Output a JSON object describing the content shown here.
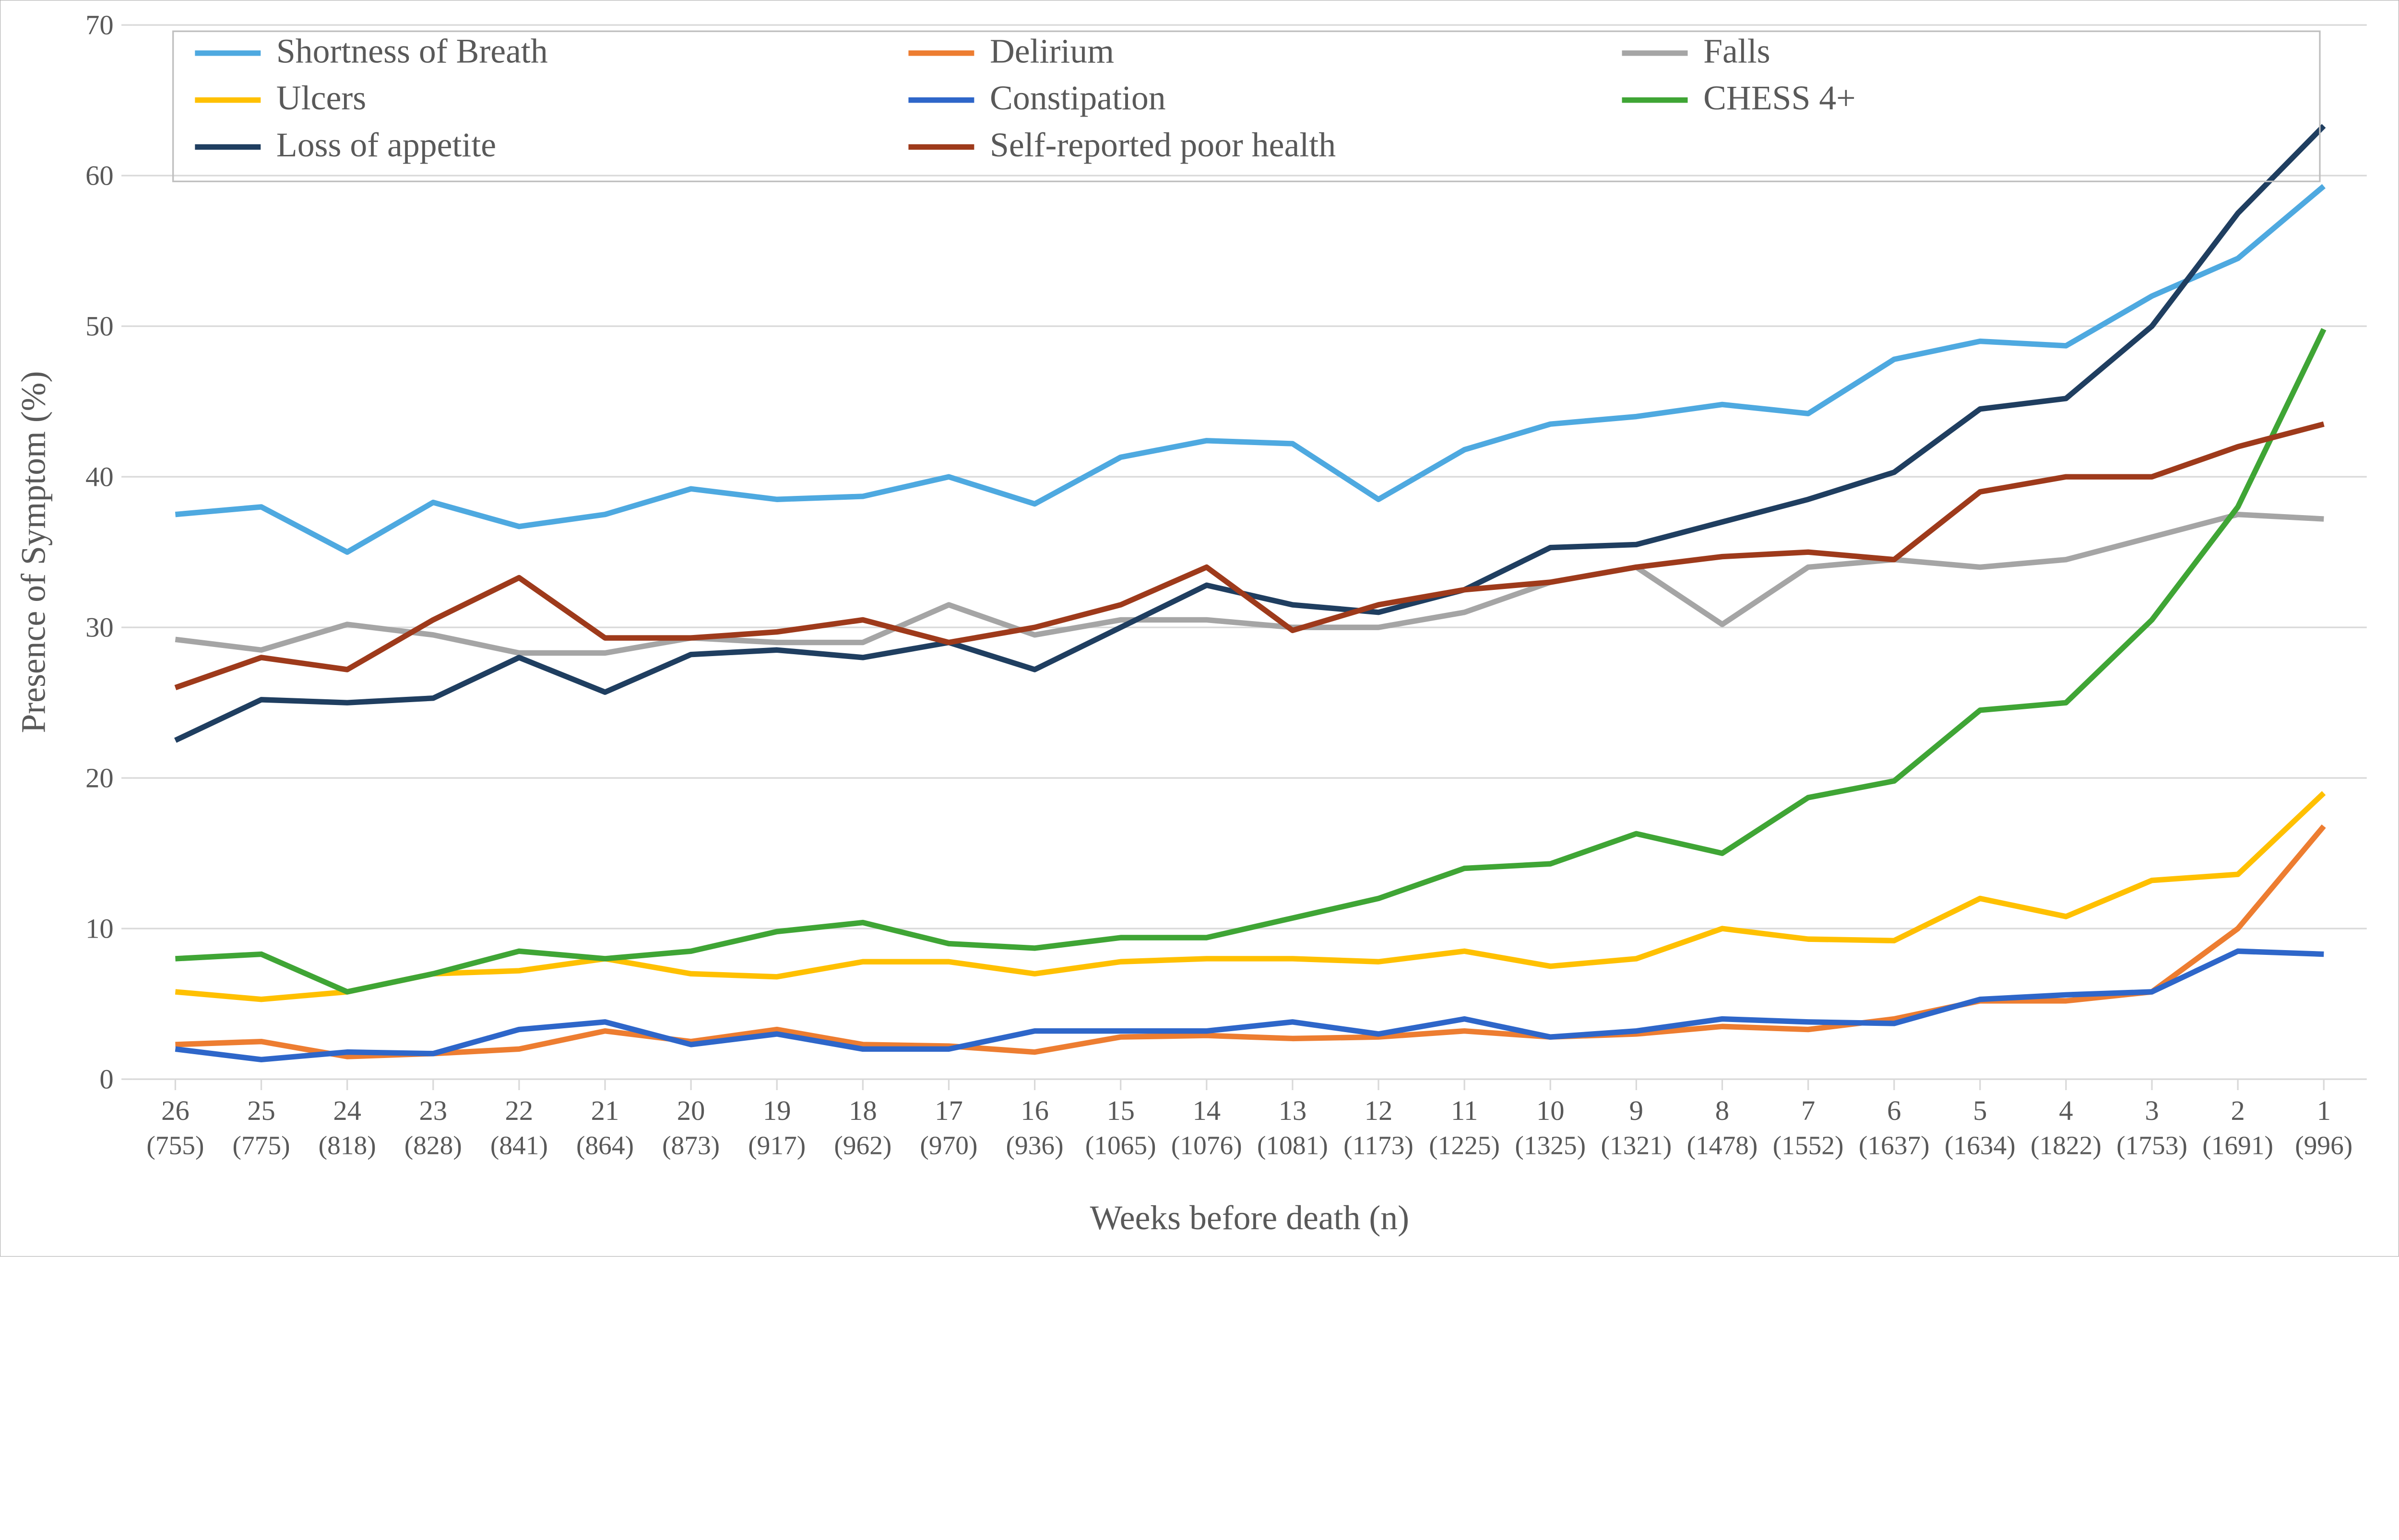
{
  "chart": {
    "type": "line",
    "background_color": "#ffffff",
    "grid_color": "#d9d9d9",
    "axis_color": "#d9d9d9",
    "border_color": "#a6a6a6",
    "text_color": "#595959",
    "title_fontsize": 22,
    "tick_fontsize": 18,
    "legend_fontsize": 22,
    "line_width": 3.5,
    "y_axis": {
      "title": "Presence of Symptom (%)",
      "min": 0,
      "max": 70,
      "tick_step": 10,
      "ticks": [
        0,
        10,
        20,
        30,
        40,
        50,
        60,
        70
      ]
    },
    "x_axis": {
      "title": "Weeks before death (n)",
      "categories_top": [
        "26",
        "25",
        "24",
        "23",
        "22",
        "21",
        "20",
        "19",
        "18",
        "17",
        "16",
        "15",
        "14",
        "13",
        "12",
        "11",
        "10",
        "9",
        "8",
        "7",
        "6",
        "5",
        "4",
        "3",
        "2",
        "1"
      ],
      "categories_bottom": [
        "(755)",
        "(775)",
        "(818)",
        "(828)",
        "(841)",
        "(864)",
        "(873)",
        "(917)",
        "(962)",
        "(970)",
        "(936)",
        "(1065)",
        "(1076)",
        "(1081)",
        "(1173)",
        "(1225)",
        "(1325)",
        "(1321)",
        "(1478)",
        "(1552)",
        "(1637)",
        "(1634)",
        "(1822)",
        "(1753)",
        "(1691)",
        "(996)"
      ]
    },
    "legend": {
      "columns": 3,
      "rows": 3,
      "order": [
        "shortness_of_breath",
        "delirium",
        "falls",
        "ulcers",
        "constipation",
        "chess4",
        "loss_of_appetite",
        "self_reported_poor_health"
      ]
    },
    "series": {
      "shortness_of_breath": {
        "label": "Shortness of Breath",
        "color": "#4ea9e0",
        "values": [
          37.5,
          38.0,
          35.0,
          38.3,
          36.7,
          37.5,
          39.2,
          38.5,
          38.7,
          40.0,
          38.2,
          41.3,
          42.4,
          42.2,
          38.5,
          41.8,
          43.5,
          44.0,
          44.8,
          44.2,
          47.8,
          49.0,
          48.7,
          52.0,
          54.5,
          59.3
        ]
      },
      "delirium": {
        "label": "Delirium",
        "color": "#ed7d31",
        "values": [
          2.3,
          2.5,
          1.5,
          1.7,
          2.0,
          3.2,
          2.5,
          3.3,
          2.3,
          2.2,
          1.8,
          2.8,
          2.9,
          2.7,
          2.8,
          3.2,
          2.8,
          3.0,
          3.5,
          3.3,
          4.0,
          5.2,
          5.2,
          5.8,
          10.0,
          16.8
        ]
      },
      "falls": {
        "label": "Falls",
        "color": "#a5a5a5",
        "values": [
          29.2,
          28.5,
          30.2,
          29.5,
          28.3,
          28.3,
          29.3,
          29.0,
          29.0,
          31.5,
          29.5,
          30.5,
          30.5,
          30.0,
          30.0,
          31.0,
          33.0,
          34.0,
          30.2,
          34.0,
          34.5,
          34.0,
          34.5,
          36.0,
          37.5,
          37.2
        ]
      },
      "ulcers": {
        "label": "Ulcers",
        "color": "#ffc000",
        "values": [
          5.8,
          5.3,
          5.8,
          7.0,
          7.2,
          8.0,
          7.0,
          6.8,
          7.8,
          7.8,
          7.0,
          7.8,
          8.0,
          8.0,
          7.8,
          8.5,
          7.5,
          8.0,
          10.0,
          9.3,
          9.2,
          12.0,
          10.8,
          13.2,
          13.6,
          19.0
        ]
      },
      "constipation": {
        "label": "Constipation",
        "color": "#2e66c9",
        "values": [
          2.0,
          1.3,
          1.8,
          1.7,
          3.3,
          3.8,
          2.3,
          3.0,
          2.0,
          2.0,
          3.2,
          3.2,
          3.2,
          3.8,
          3.0,
          4.0,
          2.8,
          3.2,
          4.0,
          3.8,
          3.7,
          5.3,
          5.6,
          5.8,
          8.5,
          8.3
        ]
      },
      "chess4": {
        "label": "CHESS 4+",
        "color": "#3fa535",
        "values": [
          8.0,
          8.3,
          5.8,
          7.0,
          8.5,
          8.0,
          8.5,
          9.8,
          10.4,
          9.0,
          8.7,
          9.4,
          9.4,
          10.7,
          12.0,
          14.0,
          14.3,
          16.3,
          15.0,
          18.7,
          19.8,
          24.5,
          25.0,
          30.5,
          38.0,
          49.8
        ]
      },
      "loss_of_appetite": {
        "label": "Loss of appetite",
        "color": "#1f3e60",
        "values": [
          22.5,
          25.2,
          25.0,
          25.3,
          28.0,
          25.7,
          28.2,
          28.5,
          28.0,
          29.0,
          27.2,
          30.0,
          32.8,
          31.5,
          31.0,
          32.5,
          35.3,
          35.5,
          37.0,
          38.5,
          40.3,
          44.5,
          45.2,
          50.0,
          57.5,
          63.3
        ]
      },
      "self_reported_poor_health": {
        "label": "Self-reported poor health",
        "color": "#9e3a1b",
        "values": [
          26.0,
          28.0,
          27.2,
          30.5,
          33.3,
          29.3,
          29.3,
          29.7,
          30.5,
          29.0,
          30.0,
          31.5,
          34.0,
          29.8,
          31.5,
          32.5,
          33.0,
          34.0,
          34.7,
          35.0,
          34.5,
          39.0,
          40.0,
          40.0,
          42.0,
          43.5
        ]
      }
    }
  }
}
